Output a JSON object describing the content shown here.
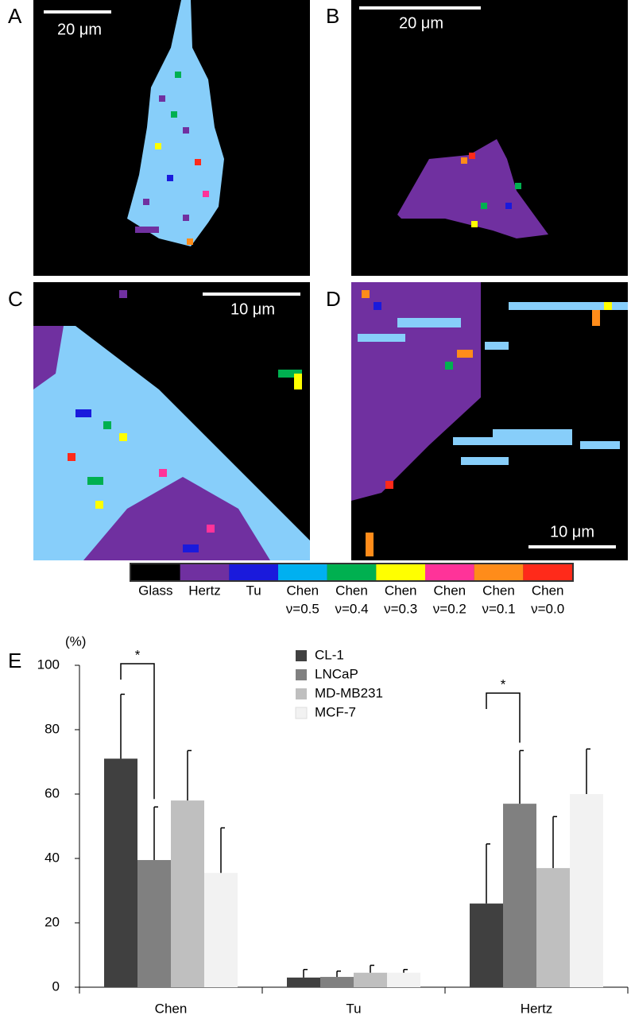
{
  "panels": [
    {
      "label": "A",
      "scale_bar": "20 μm"
    },
    {
      "label": "B",
      "scale_bar": "20 μm"
    },
    {
      "label": "C",
      "scale_bar": "10 μm"
    },
    {
      "label": "D",
      "scale_bar": "10 μm"
    }
  ],
  "colorbar": [
    {
      "label": "Glass",
      "color": "#000000"
    },
    {
      "label": "Hertz",
      "color": "#7030a0"
    },
    {
      "label": "Tu",
      "color": "#1a1adc"
    },
    {
      "label": "Chen",
      "sublabel": "ν=0.5",
      "color": "#00b0f0"
    },
    {
      "label": "Chen",
      "sublabel": "ν=0.4",
      "color": "#00b050"
    },
    {
      "label": "Chen",
      "sublabel": "ν=0.3",
      "color": "#ffff00"
    },
    {
      "label": "Chen",
      "sublabel": "ν=0.2",
      "color": "#ff3399"
    },
    {
      "label": "Chen",
      "sublabel": "ν=0.1",
      "color": "#ff8c1a"
    },
    {
      "label": "Chen",
      "sublabel": "ν=0.0",
      "color": "#ff2a1a"
    }
  ],
  "chart_data": {
    "type": "bar",
    "panel_label": "E",
    "y_label": "(%)",
    "categories": [
      "Chen",
      "Tu",
      "Hertz"
    ],
    "series": [
      {
        "name": "CL-1",
        "color": "#404040",
        "values": [
          71,
          3,
          26
        ],
        "errors": [
          20,
          2.5,
          18.5
        ]
      },
      {
        "name": "LNCaP",
        "color": "#808080",
        "values": [
          39.5,
          3.2,
          57
        ],
        "errors": [
          16.5,
          1.8,
          16.5
        ]
      },
      {
        "name": "MD-MB231",
        "color": "#bfbfbf",
        "values": [
          58,
          4.5,
          37
        ],
        "errors": [
          15.5,
          2.3,
          16
        ]
      },
      {
        "name": "MCF-7",
        "color": "#f2f2f2",
        "values": [
          35.5,
          4.5,
          60
        ],
        "errors": [
          14,
          1,
          14
        ]
      }
    ],
    "ylim": [
      0,
      100
    ],
    "yticks": [
      0,
      20,
      40,
      60,
      80,
      100
    ],
    "annotations": [
      "*",
      "*"
    ]
  }
}
